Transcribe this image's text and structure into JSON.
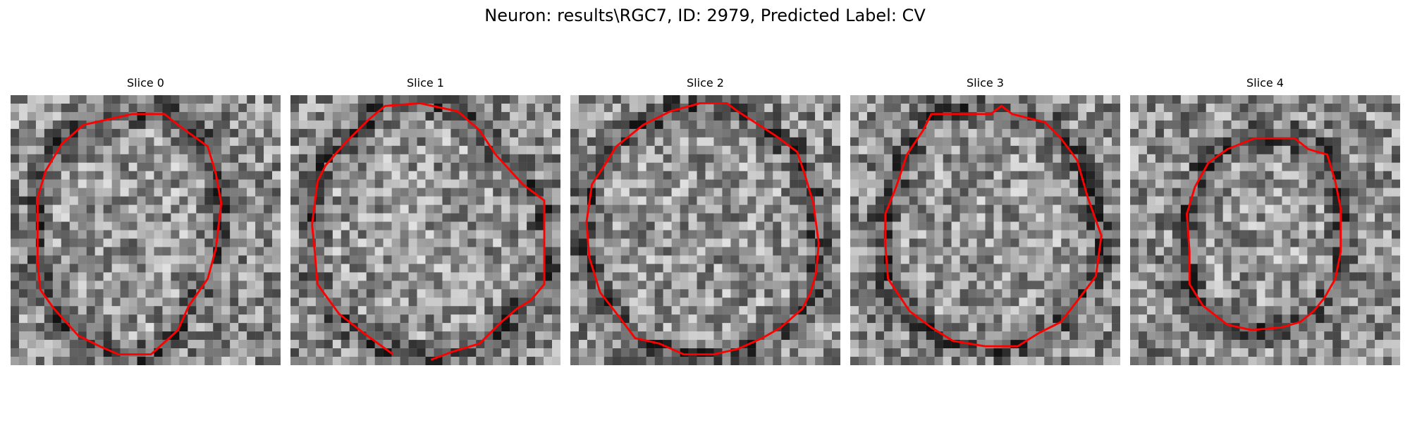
{
  "figure": {
    "title": "Neuron: results\\RGC7, ID: 2979, Predicted Label: CV"
  },
  "panels": [
    {
      "label": "Slice 0"
    },
    {
      "label": "Slice 1"
    },
    {
      "label": "Slice 2"
    },
    {
      "label": "Slice 3"
    },
    {
      "label": "Slice 4"
    }
  ],
  "colors": {
    "contour": "#ff0000",
    "background": "#ffffff"
  }
}
